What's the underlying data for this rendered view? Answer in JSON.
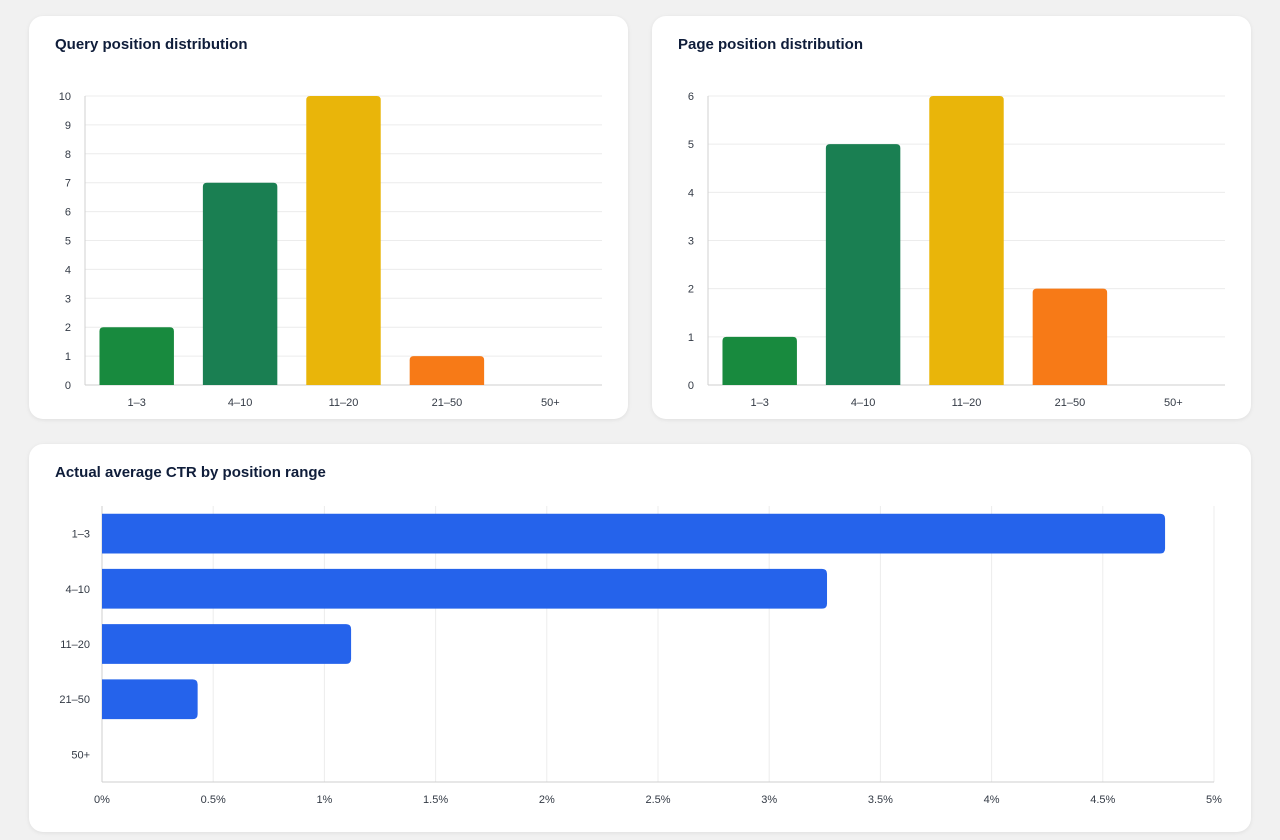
{
  "chart_data": [
    {
      "type": "bar",
      "title": "Query position distribution",
      "categories": [
        "1–3",
        "4–10",
        "11–20",
        "21–50",
        "50+"
      ],
      "values": [
        2,
        7,
        10,
        1,
        0
      ],
      "colors": [
        "#188a3e",
        "#1a7f52",
        "#e9b50a",
        "#f77a17",
        "#9aa0a6"
      ],
      "ylim": [
        0,
        10
      ],
      "yticks": [
        0,
        1,
        2,
        3,
        4,
        5,
        6,
        7,
        8,
        9,
        10
      ],
      "grid": true
    },
    {
      "type": "bar",
      "title": "Page position distribution",
      "categories": [
        "1–3",
        "4–10",
        "11–20",
        "21–50",
        "50+"
      ],
      "values": [
        1,
        5,
        6,
        2,
        0
      ],
      "colors": [
        "#188a3e",
        "#1a7f52",
        "#e9b50a",
        "#f77a17",
        "#9aa0a6"
      ],
      "ylim": [
        0,
        6
      ],
      "yticks": [
        0,
        1,
        2,
        3,
        4,
        5,
        6
      ],
      "grid": true
    },
    {
      "type": "bar",
      "orientation": "horizontal",
      "title": "Actual average CTR by position range",
      "categories": [
        "1–3",
        "4–10",
        "11–20",
        "21–50",
        "50+"
      ],
      "values": [
        4.78,
        3.26,
        1.12,
        0.43,
        0
      ],
      "color": "#2563eb",
      "xlim": [
        0,
        5
      ],
      "xticks": [
        0,
        0.5,
        1,
        1.5,
        2,
        2.5,
        3,
        3.5,
        4,
        4.5,
        5
      ],
      "xtick_labels": [
        "0%",
        "0.5%",
        "1%",
        "1.5%",
        "2%",
        "2.5%",
        "3%",
        "3.5%",
        "4%",
        "4.5%",
        "5%"
      ],
      "grid": true
    }
  ]
}
